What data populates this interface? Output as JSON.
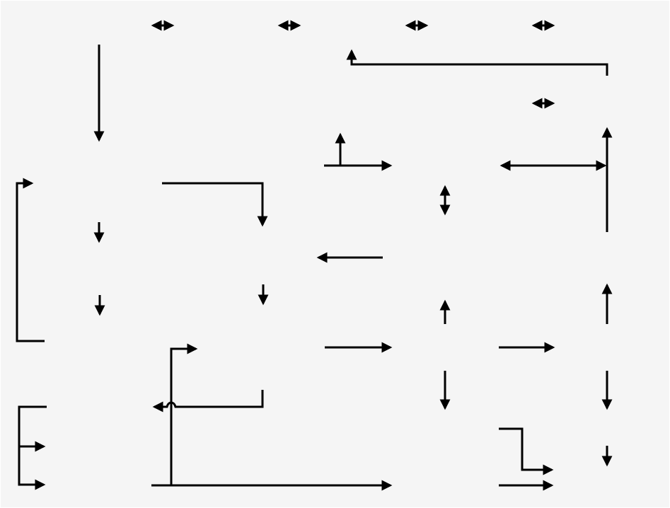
{
  "diagram": {
    "title": "",
    "background_color": "#f5f5f5",
    "border_color": "#ffffff",
    "stroke_color": "#000000",
    "connectors": [
      {
        "name": "double-arrow-1",
        "kind": "double-arrow"
      },
      {
        "name": "double-arrow-2",
        "kind": "double-arrow"
      },
      {
        "name": "double-arrow-3",
        "kind": "double-arrow"
      },
      {
        "name": "double-arrow-4",
        "kind": "double-arrow"
      },
      {
        "name": "double-arrow-5",
        "kind": "double-arrow"
      },
      {
        "name": "long-down-arrow",
        "kind": "arrow"
      },
      {
        "name": "elbow-up-arrow",
        "kind": "elbow-arrow"
      },
      {
        "name": "t-junction-right-arrow",
        "kind": "arrow"
      },
      {
        "name": "horizontal-double-arrow",
        "kind": "double-arrow"
      },
      {
        "name": "vertical-line-up-arrow",
        "kind": "arrow"
      },
      {
        "name": "left-bracket-arrow",
        "kind": "elbow-arrow"
      },
      {
        "name": "elbow-down-arrow",
        "kind": "elbow-arrow"
      },
      {
        "name": "vertical-double-arrow",
        "kind": "double-arrow"
      },
      {
        "name": "short-down-arrow-1",
        "kind": "arrow"
      },
      {
        "name": "left-arrow",
        "kind": "arrow"
      },
      {
        "name": "short-down-arrow-2",
        "kind": "arrow"
      },
      {
        "name": "short-down-arrow-3",
        "kind": "arrow"
      },
      {
        "name": "short-up-arrow-1",
        "kind": "arrow"
      },
      {
        "name": "short-up-arrow-2",
        "kind": "arrow"
      },
      {
        "name": "crossing-connector",
        "kind": "jump-connector"
      },
      {
        "name": "right-arrow-1",
        "kind": "arrow"
      },
      {
        "name": "right-arrow-2",
        "kind": "arrow"
      },
      {
        "name": "down-arrow-1",
        "kind": "arrow"
      },
      {
        "name": "down-arrow-2",
        "kind": "arrow"
      },
      {
        "name": "branch-bracket-arrows",
        "kind": "branch"
      },
      {
        "name": "step-right-arrow",
        "kind": "elbow-arrow"
      },
      {
        "name": "short-down-arrow-4",
        "kind": "arrow"
      },
      {
        "name": "bottom-right-arrow",
        "kind": "arrow"
      }
    ]
  }
}
